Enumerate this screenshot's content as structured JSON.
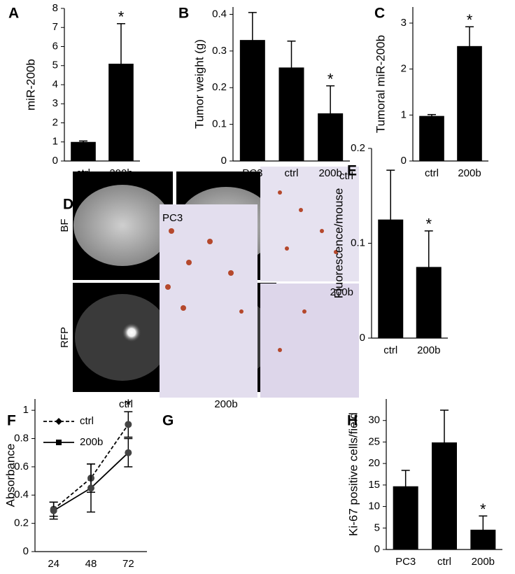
{
  "chart_data": [
    {
      "type": "bar",
      "panel": "A",
      "ylabel": "miR-200b",
      "categories": [
        "ctrl",
        "200b"
      ],
      "values": [
        1,
        5.1
      ],
      "errors": [
        0.05,
        2.1
      ],
      "color": "#000000",
      "ylim": [
        0,
        8
      ],
      "yticks": [
        0,
        1,
        2,
        3,
        4,
        5,
        6,
        7,
        8
      ],
      "annotations": [
        {
          "text": "*",
          "category": "200b"
        }
      ]
    },
    {
      "type": "bar",
      "panel": "B",
      "ylabel": "Tumor weight (g)",
      "categories": [
        "PC3",
        "ctrl",
        "200b"
      ],
      "values": [
        0.33,
        0.255,
        0.13
      ],
      "errors": [
        0.075,
        0.072,
        0.075
      ],
      "color": "#000000",
      "ylim": [
        0,
        0.42
      ],
      "yticks": [
        0,
        0.1,
        0.2,
        0.3,
        0.4
      ],
      "annotations": [
        {
          "text": "*",
          "category": "200b"
        }
      ]
    },
    {
      "type": "bar",
      "panel": "C",
      "ylabel": "Tumoral miR-200b",
      "categories": [
        "ctrl",
        "200b"
      ],
      "values": [
        0.98,
        2.5
      ],
      "errors": [
        0.03,
        0.42
      ],
      "color": "#000000",
      "ylim": [
        0,
        3.35
      ],
      "yticks": [
        0,
        1,
        2,
        3
      ],
      "annotations": [
        {
          "text": "*",
          "category": "200b"
        }
      ]
    },
    {
      "type": "bar",
      "panel": "E",
      "ylabel": "Fluorescence/mouse",
      "categories": [
        "ctrl",
        "200b"
      ],
      "values": [
        0.125,
        0.075
      ],
      "errors": [
        0.052,
        0.038
      ],
      "color": "#000000",
      "ylim": [
        0,
        0.2
      ],
      "yticks": [
        0,
        0.1,
        0.2
      ],
      "annotations": [
        {
          "text": "*",
          "category": "200b"
        }
      ]
    },
    {
      "type": "line",
      "panel": "F",
      "ylabel": "Absorbance",
      "categories": [
        "24",
        "48",
        "72"
      ],
      "series": [
        {
          "name": "ctrl",
          "color": "#000000",
          "line_style": "dashed",
          "marker": "diamond",
          "values": [
            0.3,
            0.52,
            0.9
          ],
          "errors": [
            0.05,
            0.1,
            0.09
          ]
        },
        {
          "name": "200b",
          "color": "#000000",
          "line_style": "solid",
          "marker": "square",
          "values": [
            0.29,
            0.45,
            0.7
          ],
          "errors": [
            0.06,
            0.17,
            0.1
          ]
        }
      ],
      "ylim": [
        0,
        1.08
      ],
      "yticks": [
        0,
        0.2,
        0.4,
        0.6,
        0.8,
        1
      ],
      "legend": "upper left",
      "annotations": [
        {
          "text": "*",
          "category": "72"
        }
      ]
    },
    {
      "type": "bar",
      "panel": "H",
      "ylabel": "Ki-67 positive cells/field",
      "categories": [
        "PC3",
        "ctrl",
        "200b"
      ],
      "values": [
        14.7,
        24.9,
        4.6
      ],
      "errors": [
        3.7,
        7.5,
        3.2
      ],
      "color": "#000000",
      "ylim": [
        0,
        35
      ],
      "yticks": [
        0,
        5,
        10,
        15,
        20,
        25,
        30
      ],
      "annotations": [
        {
          "text": "*",
          "category": "200b"
        }
      ]
    }
  ],
  "image_panels": [
    {
      "panel": "D",
      "row_labels": [
        "BF",
        "RFP"
      ],
      "column_labels": [
        "ctrl",
        "200b"
      ]
    },
    {
      "panel": "G",
      "labels": [
        "PC3",
        "ctrl",
        "200b"
      ]
    }
  ]
}
